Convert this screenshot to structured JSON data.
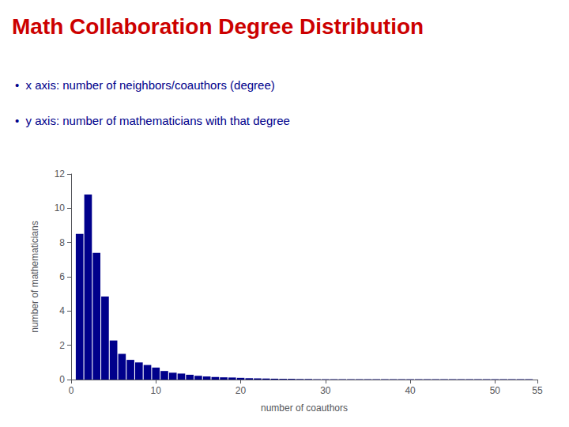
{
  "chart_data": {
    "type": "bar",
    "title": "Math Collaboration Degree Distribution",
    "annotations": [
      "•  x axis: number of neighbors/coauthors (degree)",
      "•  y axis: number of mathematicians with that degree"
    ],
    "xlabel": "number of coauthors",
    "ylabel": "number of mathematicians",
    "x": [
      1,
      2,
      3,
      4,
      5,
      6,
      7,
      8,
      9,
      10,
      11,
      12,
      13,
      14,
      15,
      16,
      17,
      18,
      19,
      20,
      21,
      22,
      23,
      24,
      25,
      26,
      27,
      28,
      29,
      30,
      31,
      32,
      33,
      34,
      35,
      36,
      37,
      38,
      39,
      40,
      41,
      42,
      43,
      44,
      45,
      46,
      47,
      48,
      49,
      50,
      51,
      52,
      53,
      54
    ],
    "values": [
      8.5,
      10.8,
      7.4,
      4.85,
      2.28,
      1.5,
      1.15,
      1.0,
      0.85,
      0.7,
      0.5,
      0.4,
      0.35,
      0.28,
      0.22,
      0.18,
      0.15,
      0.13,
      0.12,
      0.1,
      0.08,
      0.07,
      0.06,
      0.05,
      0.04,
      0.04,
      0.03,
      0.03,
      0.02,
      0.02,
      0.02,
      0.02,
      0.02,
      0.02,
      0.02,
      0.02,
      0.02,
      0.02,
      0.02,
      0.02,
      0.02,
      0.02,
      0.02,
      0.02,
      0.02,
      0.02,
      0.02,
      0.02,
      0.02,
      0.02,
      0.02,
      0.02,
      0.02,
      0.02
    ],
    "color": "#00008B",
    "xlim": [
      0,
      55
    ],
    "ylim": [
      0,
      12
    ],
    "xticks": [
      0,
      10,
      20,
      30,
      40,
      50,
      55
    ],
    "yticks": [
      0,
      2,
      4,
      6,
      8,
      10,
      12
    ],
    "grid": false
  }
}
